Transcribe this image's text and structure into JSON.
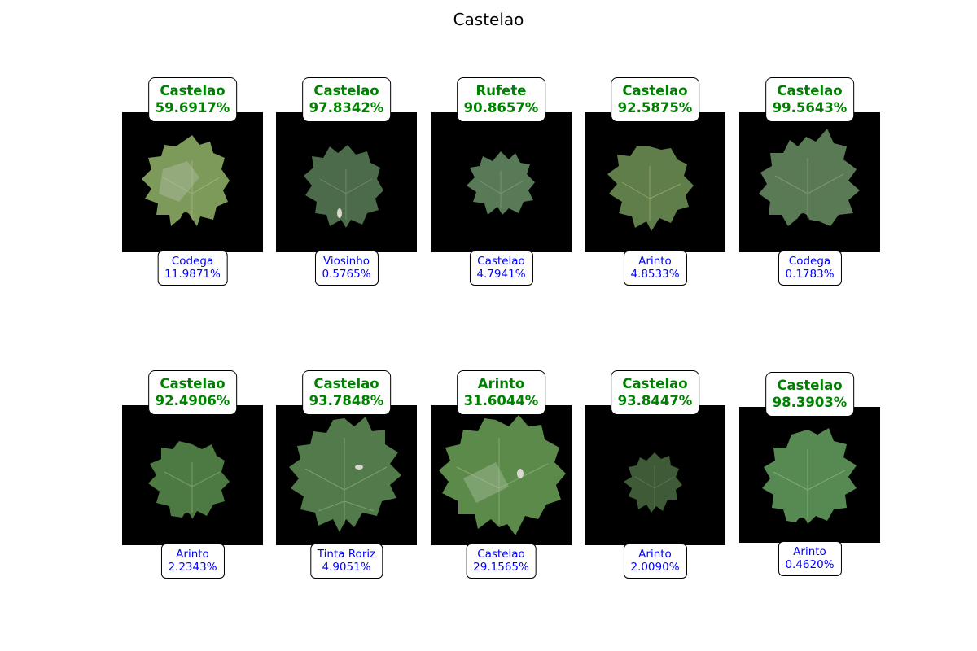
{
  "title": "Castelao",
  "panels": [
    {
      "top_class": "Castelao",
      "top_pct": "59.6917%",
      "second_class": "Codega",
      "second_pct": "11.9871%"
    },
    {
      "top_class": "Castelao",
      "top_pct": "97.8342%",
      "second_class": "Viosinho",
      "second_pct": "0.5765%"
    },
    {
      "top_class": "Rufete",
      "top_pct": "90.8657%",
      "second_class": "Castelao",
      "second_pct": "4.7941%"
    },
    {
      "top_class": "Castelao",
      "top_pct": "92.5875%",
      "second_class": "Arinto",
      "second_pct": "4.8533%"
    },
    {
      "top_class": "Castelao",
      "top_pct": "99.5643%",
      "second_class": "Codega",
      "second_pct": "0.1783%"
    },
    {
      "top_class": "Castelao",
      "top_pct": "92.4906%",
      "second_class": "Arinto",
      "second_pct": "2.2343%"
    },
    {
      "top_class": "Castelao",
      "top_pct": "93.7848%",
      "second_class": "Tinta Roriz",
      "second_pct": "4.9051%"
    },
    {
      "top_class": "Arinto",
      "top_pct": "31.6044%",
      "second_class": "Castelao",
      "second_pct": "29.1565%"
    },
    {
      "top_class": "Castelao",
      "top_pct": "93.8447%",
      "second_class": "Arinto",
      "second_pct": "2.0090%"
    },
    {
      "top_class": "Castelao",
      "top_pct": "98.3903%",
      "second_class": "Arinto",
      "second_pct": "0.4620%"
    }
  ],
  "colors": {
    "top_label": "#008000",
    "bottom_label": "#0000ff",
    "image_background": "#000000"
  }
}
